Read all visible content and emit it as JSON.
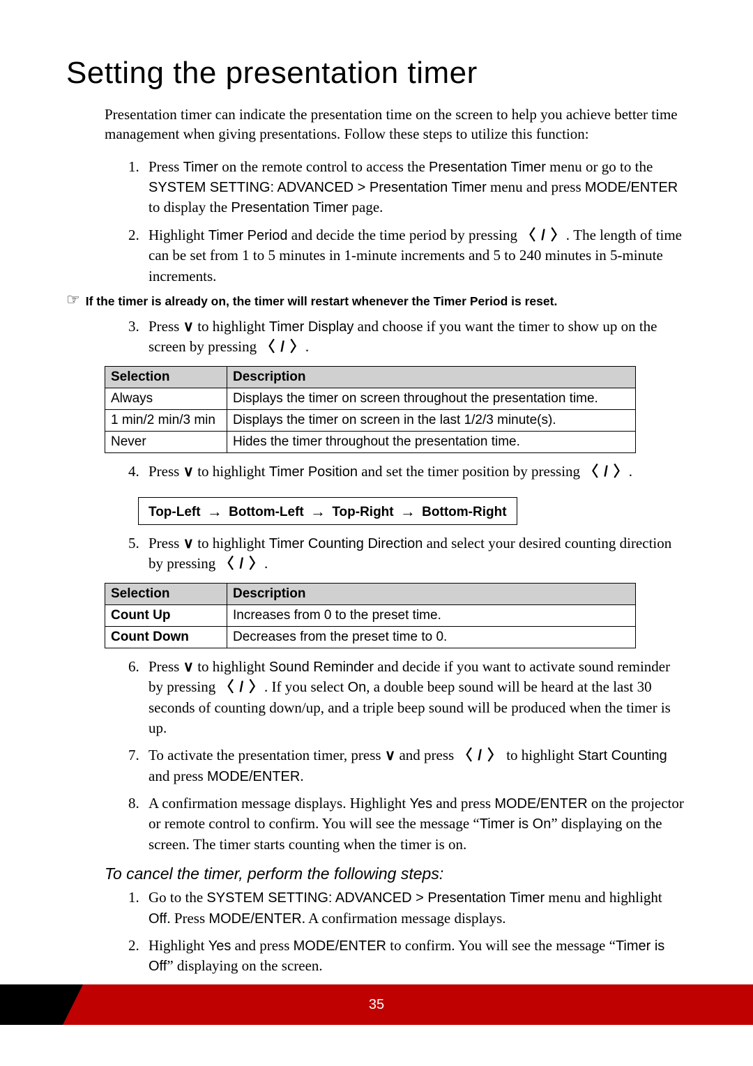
{
  "h1": "Setting the presentation timer",
  "intro": "Presentation timer can indicate the presentation time on the screen to help you achieve better time management when giving presentations. Follow these steps to utilize this function:",
  "noteIcon": "☞",
  "noteText": "If the timer is already on, the timer will restart whenever the Timer Period is reset.",
  "arrows": {
    "lr": "〈 / 〉",
    "down": "∨",
    "right": "→"
  },
  "steps": {
    "s1a": "Press ",
    "s1_timer": "Timer",
    "s1b": " on the remote control to access the ",
    "s1_pt": "Presentation Timer",
    "s1c": " menu or go to the ",
    "s1_path": "SYSTEM SETTING: ADVANCED > Presentation Timer",
    "s1d": " menu and press ",
    "s1_mode": "MODE/ENTER",
    "s1e": " to display the ",
    "s1f": " page.",
    "s2a": "Highlight ",
    "s2_tp": "Timer Period",
    "s2b": " and decide the time period by pressing ",
    "s2c": ". The length of time can be set from 1 to 5 minutes in 1-minute increments and 5 to 240 minutes in 5-minute increments.",
    "s3a": "Press ",
    "s3b": " to highlight ",
    "s3_td": "Timer Display",
    "s3c": " and choose if you want the timer to show up on the screen by pressing ",
    "s3d": ".",
    "s4a": "Press ",
    "s4b": " to highlight ",
    "s4_tp": "Timer Position",
    "s4c": " and set the timer position by pressing ",
    "s4d": ".",
    "s5a": "Press ",
    "s5b": " to highlight ",
    "s5_tcd": "Timer Counting Direction",
    "s5c": " and select your desired counting direction by pressing ",
    "s5d": ".",
    "s6a": "Press ",
    "s6b": " to highlight ",
    "s6_sr": "Sound Reminder",
    "s6c": " and decide if you want to activate sound reminder by pressing ",
    "s6d": ". If you select ",
    "s6_on": "On",
    "s6e": ", a double beep sound will be heard at the last 30 seconds of counting down/up, and a triple beep sound will be produced when the timer is up.",
    "s7a": "To activate the presentation timer, press ",
    "s7b": " and press ",
    "s7c": " to highlight ",
    "s7_sc": "Start Counting",
    "s7d": " and press ",
    "s7_mode": "MODE/ENTER",
    "s7e": ".",
    "s8a": "A confirmation message displays. Highlight ",
    "s8_yes": "Yes",
    "s8b": " and press ",
    "s8_mode": "MODE/ENTER",
    "s8c": " on the projector or remote control to confirm. You will see the message “",
    "s8_tio": "Timer is On",
    "s8d": "” displaying on the screen. The timer starts counting when the timer is on."
  },
  "table1": {
    "h1": "Selection",
    "h2": "Description",
    "r1c1": "Always",
    "r1c2": "Displays the timer on screen throughout the presentation time.",
    "r2c1": "1 min/2 min/3 min",
    "r2c2": "Displays the timer on screen in the last 1/2/3 minute(s).",
    "r3c1": "Never",
    "r3c2": "Hides the timer throughout the presentation time."
  },
  "position": {
    "p1": "Top-Left",
    "p2": "Bottom-Left",
    "p3": "Top-Right",
    "p4": "Bottom-Right"
  },
  "table2": {
    "h1": "Selection",
    "h2": "Description",
    "r1c1": "Count Up",
    "r1c2": "Increases from 0 to the preset time.",
    "r2c1": "Count Down",
    "r2c2": "Decreases from the preset time to 0."
  },
  "subHeading": "To cancel the timer, perform the following steps:",
  "cancel": {
    "c1a": "Go to the ",
    "c1_path": "SYSTEM SETTING: ADVANCED > Presentation Timer",
    "c1b": " menu and highlight ",
    "c1_off": "Off",
    "c1c": ". Press ",
    "c1_mode": "MODE/ENTER",
    "c1d": ". A confirmation message displays.",
    "c2a": "Highlight ",
    "c2_yes": "Yes",
    "c2b": " and press ",
    "c2_mode": "MODE/ENTER",
    "c2c": " to confirm. You will see the message “",
    "c2_tio": "Timer is Off",
    "c2d": "” displaying on the screen."
  },
  "pageNum": "35",
  "colors": {
    "footerRed": "#bf0101",
    "headerGray": "#d0d0d0"
  }
}
